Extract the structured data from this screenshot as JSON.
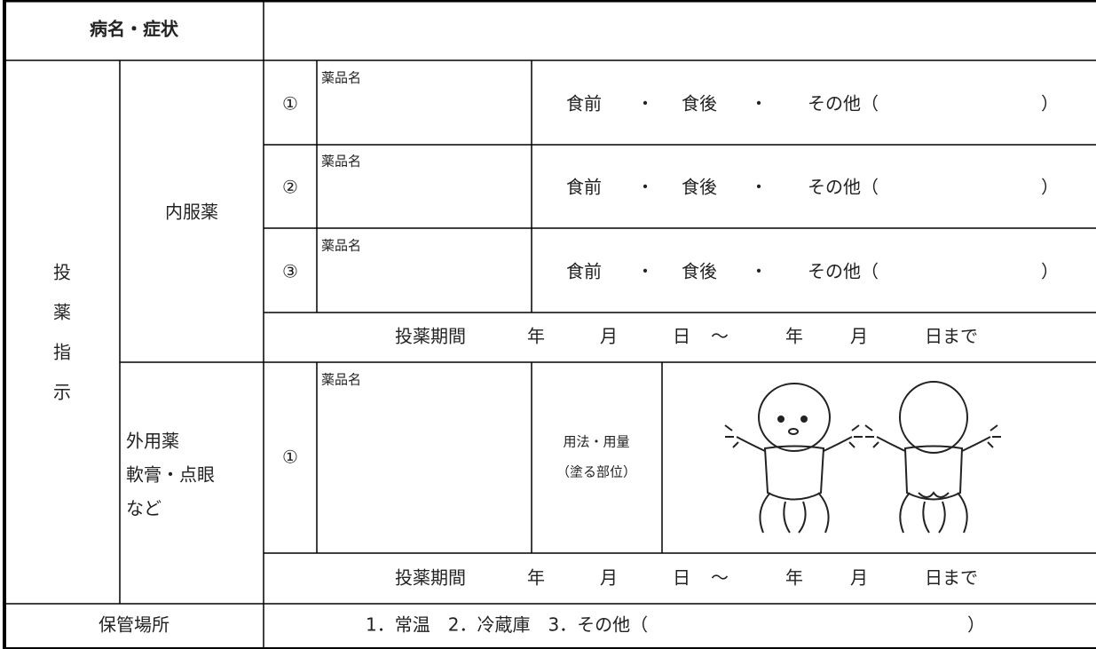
{
  "diagnosis": {
    "label": "病名・症状"
  },
  "medication": {
    "label": [
      "投",
      "薬",
      "指",
      "示"
    ],
    "internal": {
      "label": "内服薬",
      "drugs": [
        {
          "number": "①",
          "name_label": "薬品名",
          "timing": [
            "食前",
            "・",
            "食後",
            "・",
            "その他（",
            "）"
          ]
        },
        {
          "number": "②",
          "name_label": "薬品名",
          "timing": [
            "食前",
            "・",
            "食後",
            "・",
            "その他（",
            "）"
          ]
        },
        {
          "number": "③",
          "name_label": "薬品名",
          "timing": [
            "食前",
            "・",
            "食後",
            "・",
            "その他（",
            "）"
          ]
        }
      ],
      "period": [
        "投薬期間",
        "年",
        "月",
        "日",
        "～",
        "年",
        "月",
        "日まで"
      ]
    },
    "external": {
      "label": [
        "外用薬",
        "軟膏・点眼",
        "など"
      ],
      "drugs": [
        {
          "number": "①",
          "name_label": "薬品名",
          "usage": [
            "用法・用量",
            "（塗る部位）"
          ]
        }
      ],
      "period": [
        "投薬期間",
        "年",
        "月",
        "日",
        "～",
        "年",
        "月",
        "日まで"
      ]
    }
  },
  "storage": {
    "label": "保管場所",
    "options": "1．常温　2．冷蔵庫　3．その他（",
    "close": "）"
  }
}
